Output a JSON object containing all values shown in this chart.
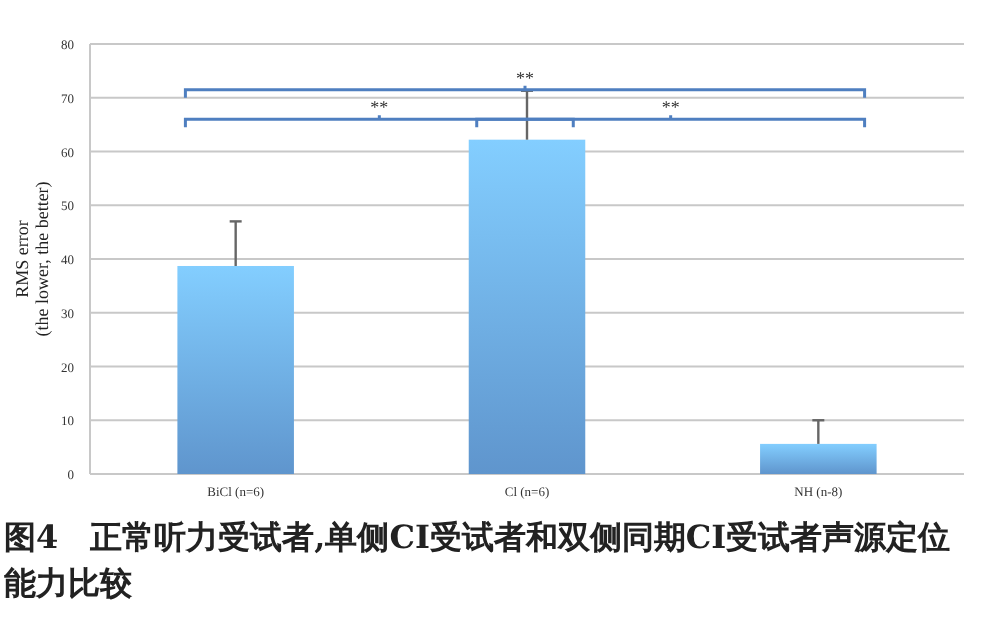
{
  "chart_data": {
    "type": "bar",
    "title": "图4　正常听力受试者,单侧CI受试者和双侧同期CI受试者声源定位能力比较",
    "ylabel": "RMS error\n(the lower, the better)",
    "categories": [
      "BiCl (n=6)",
      "Cl (n=6)",
      "NH (n-8)"
    ],
    "values": [
      38.7,
      62.2,
      5.6
    ],
    "errors": [
      [
        38.7,
        47
      ],
      [
        62.2,
        71.3
      ],
      [
        5.6,
        10
      ]
    ],
    "color": "#6aa6e4",
    "ylim": [
      0,
      80
    ],
    "yticks": [
      0,
      10,
      20,
      30,
      40,
      50,
      60,
      70,
      80
    ],
    "grid": "y",
    "annotations": [
      "**",
      "**",
      "**"
    ]
  }
}
